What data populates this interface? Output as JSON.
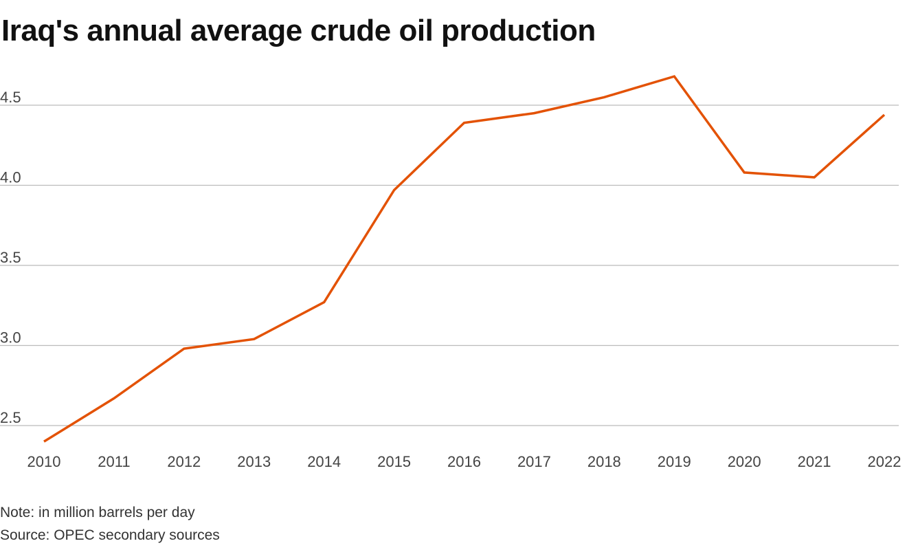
{
  "chart_data": {
    "type": "line",
    "title": "Iraq's annual average crude oil production",
    "x": [
      "2010",
      "2011",
      "2012",
      "2013",
      "2014",
      "2015",
      "2016",
      "2017",
      "2018",
      "2019",
      "2020",
      "2021",
      "2022"
    ],
    "series": [
      {
        "values": [
          2.4,
          2.67,
          2.98,
          3.04,
          3.27,
          3.97,
          4.39,
          4.45,
          4.55,
          4.68,
          4.08,
          4.05,
          4.44
        ],
        "color": "#e35205"
      }
    ],
    "yticks": [
      "2.5",
      "3.0",
      "3.5",
      "4.0",
      "4.5"
    ],
    "ylim": [
      2.4,
      4.7
    ],
    "grid": true,
    "xlabel": "",
    "ylabel": ""
  },
  "footer": {
    "note": "Note: in million barrels per day",
    "source": "Source: OPEC secondary sources"
  },
  "colors": {
    "line": "#e35205",
    "grid": "#bbbbbb",
    "text": "#111111"
  }
}
